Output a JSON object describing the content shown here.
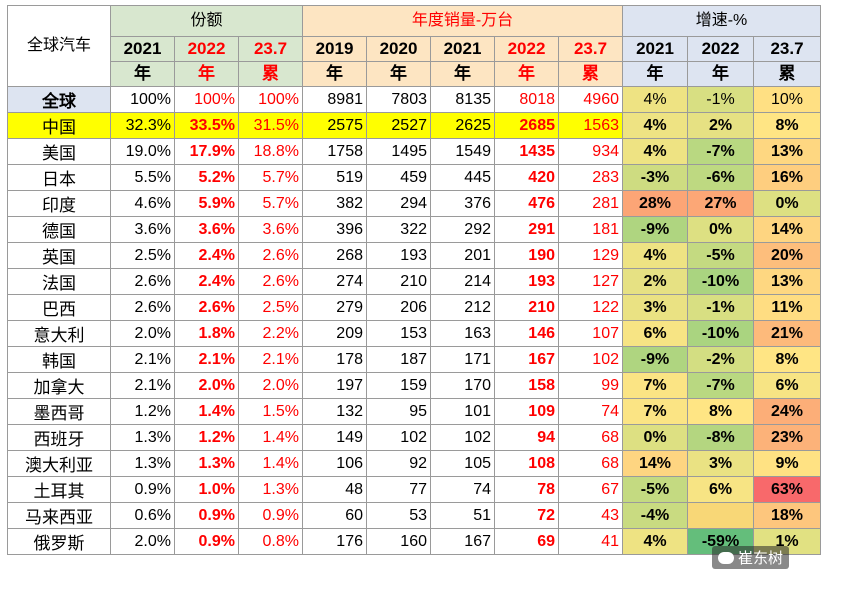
{
  "table": {
    "corner": "全球汽车",
    "groups": [
      {
        "label": "份额",
        "span": 3
      },
      {
        "label": "年度销量-万台",
        "span": 5
      },
      {
        "label": "增速-%",
        "span": 3
      }
    ],
    "subheaders": [
      [
        "2021",
        "年"
      ],
      [
        "2022",
        "年"
      ],
      [
        "23.7",
        "累"
      ],
      [
        "2019",
        "年"
      ],
      [
        "2020",
        "年"
      ],
      [
        "2021",
        "年"
      ],
      [
        "2022",
        "年"
      ],
      [
        "23.7",
        "累"
      ],
      [
        "2021",
        "年"
      ],
      [
        "2022",
        "年"
      ],
      [
        "23.7",
        "累"
      ]
    ],
    "rows": [
      {
        "name": "全球",
        "share": [
          "100%",
          "100%",
          "100%"
        ],
        "sales": [
          "8981",
          "7803",
          "8135",
          "8018",
          "4960"
        ],
        "growth": [
          "4%",
          "-1%",
          "10%"
        ]
      },
      {
        "name": "中国",
        "share": [
          "32.3%",
          "33.5%",
          "31.5%"
        ],
        "sales": [
          "2575",
          "2527",
          "2625",
          "2685",
          "1563"
        ],
        "growth": [
          "4%",
          "2%",
          "8%"
        ]
      },
      {
        "name": "美国",
        "share": [
          "19.0%",
          "17.9%",
          "18.8%"
        ],
        "sales": [
          "1758",
          "1495",
          "1549",
          "1435",
          "934"
        ],
        "growth": [
          "4%",
          "-7%",
          "13%"
        ]
      },
      {
        "name": "日本",
        "share": [
          "5.5%",
          "5.2%",
          "5.7%"
        ],
        "sales": [
          "519",
          "459",
          "445",
          "420",
          "283"
        ],
        "growth": [
          "-3%",
          "-6%",
          "16%"
        ]
      },
      {
        "name": "印度",
        "share": [
          "4.6%",
          "5.9%",
          "5.7%"
        ],
        "sales": [
          "382",
          "294",
          "376",
          "476",
          "281"
        ],
        "growth": [
          "28%",
          "27%",
          "0%"
        ]
      },
      {
        "name": "德国",
        "share": [
          "3.6%",
          "3.6%",
          "3.6%"
        ],
        "sales": [
          "396",
          "322",
          "292",
          "291",
          "181"
        ],
        "growth": [
          "-9%",
          "0%",
          "14%"
        ]
      },
      {
        "name": "英国",
        "share": [
          "2.5%",
          "2.4%",
          "2.6%"
        ],
        "sales": [
          "268",
          "193",
          "201",
          "190",
          "129"
        ],
        "growth": [
          "4%",
          "-5%",
          "20%"
        ]
      },
      {
        "name": "法国",
        "share": [
          "2.6%",
          "2.4%",
          "2.6%"
        ],
        "sales": [
          "274",
          "210",
          "214",
          "193",
          "127"
        ],
        "growth": [
          "2%",
          "-10%",
          "13%"
        ]
      },
      {
        "name": "巴西",
        "share": [
          "2.6%",
          "2.6%",
          "2.5%"
        ],
        "sales": [
          "279",
          "206",
          "212",
          "210",
          "122"
        ],
        "growth": [
          "3%",
          "-1%",
          "11%"
        ]
      },
      {
        "name": "意大利",
        "share": [
          "2.0%",
          "1.8%",
          "2.2%"
        ],
        "sales": [
          "209",
          "153",
          "163",
          "146",
          "107"
        ],
        "growth": [
          "6%",
          "-10%",
          "21%"
        ]
      },
      {
        "name": "韩国",
        "share": [
          "2.1%",
          "2.1%",
          "2.1%"
        ],
        "sales": [
          "178",
          "187",
          "171",
          "167",
          "102"
        ],
        "growth": [
          "-9%",
          "-2%",
          "8%"
        ]
      },
      {
        "name": "加拿大",
        "share": [
          "2.1%",
          "2.0%",
          "2.0%"
        ],
        "sales": [
          "197",
          "159",
          "170",
          "158",
          "99"
        ],
        "growth": [
          "7%",
          "-7%",
          "6%"
        ]
      },
      {
        "name": "墨西哥",
        "share": [
          "1.2%",
          "1.4%",
          "1.5%"
        ],
        "sales": [
          "132",
          "95",
          "101",
          "109",
          "74"
        ],
        "growth": [
          "7%",
          "8%",
          "24%"
        ]
      },
      {
        "name": "西班牙",
        "share": [
          "1.3%",
          "1.2%",
          "1.4%"
        ],
        "sales": [
          "149",
          "102",
          "102",
          "94",
          "68"
        ],
        "growth": [
          "0%",
          "-8%",
          "23%"
        ]
      },
      {
        "name": "澳大利亚",
        "share": [
          "1.3%",
          "1.3%",
          "1.4%"
        ],
        "sales": [
          "106",
          "92",
          "105",
          "108",
          "68"
        ],
        "growth": [
          "14%",
          "3%",
          "9%"
        ]
      },
      {
        "name": "土耳其",
        "share": [
          "0.9%",
          "1.0%",
          "1.3%"
        ],
        "sales": [
          "48",
          "77",
          "74",
          "78",
          "67"
        ],
        "growth": [
          "-5%",
          "6%",
          "63%"
        ]
      },
      {
        "name": "马来西亚",
        "share": [
          "0.6%",
          "0.9%",
          "0.9%"
        ],
        "sales": [
          "60",
          "53",
          "51",
          "72",
          "43"
        ],
        "growth": [
          "-4%",
          "",
          "18%"
        ]
      },
      {
        "name": "俄罗斯",
        "share": [
          "2.0%",
          "0.9%",
          "0.8%"
        ],
        "sales": [
          "176",
          "160",
          "167",
          "69",
          "41"
        ],
        "growth": [
          "4%",
          "-59%",
          "1%"
        ]
      }
    ]
  },
  "watermark": "崔东树",
  "colors": {
    "share_header": "#d8e7cf",
    "sales_header": "#fde5c2",
    "growth_header": "#dde4f1",
    "highlight_row": "#ffff00",
    "emphasis_text": "#ff0000"
  }
}
